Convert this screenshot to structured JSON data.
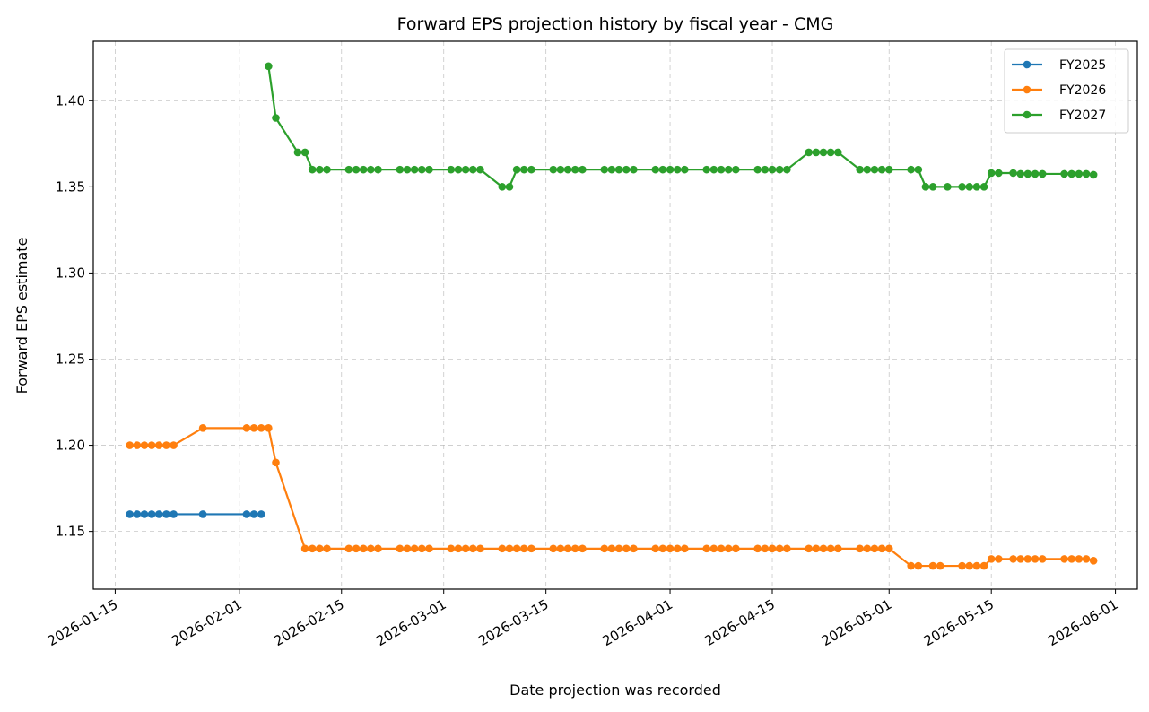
{
  "chart_data": {
    "type": "line",
    "title": "Forward EPS projection history by fiscal year - CMG",
    "xlabel": "Date projection was recorded",
    "ylabel": "Forward EPS estimate",
    "xlim": [
      "2026-01-12",
      "2026-06-04"
    ],
    "ylim": [
      1.1165,
      1.4345
    ],
    "x_ticks": [
      "2026-01-15",
      "2026-02-01",
      "2026-02-15",
      "2026-03-01",
      "2026-03-15",
      "2026-04-01",
      "2026-04-15",
      "2026-05-01",
      "2026-05-15",
      "2026-06-01"
    ],
    "y_ticks": [
      "1.15",
      "1.20",
      "1.25",
      "1.30",
      "1.35",
      "1.40"
    ],
    "grid": true,
    "legend_position": "top-right",
    "colors": {
      "FY2025": "#1f77b4",
      "FY2026": "#ff7f0e",
      "FY2027": "#2ca02c"
    },
    "series": [
      {
        "name": "FY2025",
        "points": [
          [
            "2026-01-17",
            1.16
          ],
          [
            "2026-01-18",
            1.16
          ],
          [
            "2026-01-19",
            1.16
          ],
          [
            "2026-01-20",
            1.16
          ],
          [
            "2026-01-21",
            1.16
          ],
          [
            "2026-01-22",
            1.16
          ],
          [
            "2026-01-23",
            1.16
          ],
          [
            "2026-01-27",
            1.16
          ],
          [
            "2026-02-02",
            1.16
          ],
          [
            "2026-02-03",
            1.16
          ],
          [
            "2026-02-04",
            1.16
          ]
        ]
      },
      {
        "name": "FY2026",
        "points": [
          [
            "2026-01-17",
            1.2
          ],
          [
            "2026-01-18",
            1.2
          ],
          [
            "2026-01-19",
            1.2
          ],
          [
            "2026-01-20",
            1.2
          ],
          [
            "2026-01-21",
            1.2
          ],
          [
            "2026-01-22",
            1.2
          ],
          [
            "2026-01-23",
            1.2
          ],
          [
            "2026-01-27",
            1.21
          ],
          [
            "2026-02-02",
            1.21
          ],
          [
            "2026-02-03",
            1.21
          ],
          [
            "2026-02-04",
            1.21
          ],
          [
            "2026-02-05",
            1.21
          ],
          [
            "2026-02-06",
            1.19
          ],
          [
            "2026-02-10",
            1.14
          ],
          [
            "2026-02-11",
            1.14
          ],
          [
            "2026-02-12",
            1.14
          ],
          [
            "2026-02-13",
            1.14
          ],
          [
            "2026-02-16",
            1.14
          ],
          [
            "2026-02-17",
            1.14
          ],
          [
            "2026-02-18",
            1.14
          ],
          [
            "2026-02-19",
            1.14
          ],
          [
            "2026-02-20",
            1.14
          ],
          [
            "2026-02-23",
            1.14
          ],
          [
            "2026-02-24",
            1.14
          ],
          [
            "2026-02-25",
            1.14
          ],
          [
            "2026-02-26",
            1.14
          ],
          [
            "2026-02-27",
            1.14
          ],
          [
            "2026-03-02",
            1.14
          ],
          [
            "2026-03-03",
            1.14
          ],
          [
            "2026-03-04",
            1.14
          ],
          [
            "2026-03-05",
            1.14
          ],
          [
            "2026-03-06",
            1.14
          ],
          [
            "2026-03-09",
            1.14
          ],
          [
            "2026-03-10",
            1.14
          ],
          [
            "2026-03-11",
            1.14
          ],
          [
            "2026-03-12",
            1.14
          ],
          [
            "2026-03-13",
            1.14
          ],
          [
            "2026-03-16",
            1.14
          ],
          [
            "2026-03-17",
            1.14
          ],
          [
            "2026-03-18",
            1.14
          ],
          [
            "2026-03-19",
            1.14
          ],
          [
            "2026-03-20",
            1.14
          ],
          [
            "2026-03-23",
            1.14
          ],
          [
            "2026-03-24",
            1.14
          ],
          [
            "2026-03-25",
            1.14
          ],
          [
            "2026-03-26",
            1.14
          ],
          [
            "2026-03-27",
            1.14
          ],
          [
            "2026-03-30",
            1.14
          ],
          [
            "2026-03-31",
            1.14
          ],
          [
            "2026-04-01",
            1.14
          ],
          [
            "2026-04-02",
            1.14
          ],
          [
            "2026-04-03",
            1.14
          ],
          [
            "2026-04-06",
            1.14
          ],
          [
            "2026-04-07",
            1.14
          ],
          [
            "2026-04-08",
            1.14
          ],
          [
            "2026-04-09",
            1.14
          ],
          [
            "2026-04-10",
            1.14
          ],
          [
            "2026-04-13",
            1.14
          ],
          [
            "2026-04-14",
            1.14
          ],
          [
            "2026-04-15",
            1.14
          ],
          [
            "2026-04-16",
            1.14
          ],
          [
            "2026-04-17",
            1.14
          ],
          [
            "2026-04-20",
            1.14
          ],
          [
            "2026-04-21",
            1.14
          ],
          [
            "2026-04-22",
            1.14
          ],
          [
            "2026-04-23",
            1.14
          ],
          [
            "2026-04-24",
            1.14
          ],
          [
            "2026-04-27",
            1.14
          ],
          [
            "2026-04-28",
            1.14
          ],
          [
            "2026-04-29",
            1.14
          ],
          [
            "2026-04-30",
            1.14
          ],
          [
            "2026-05-01",
            1.14
          ],
          [
            "2026-05-04",
            1.13
          ],
          [
            "2026-05-05",
            1.13
          ],
          [
            "2026-05-07",
            1.13
          ],
          [
            "2026-05-08",
            1.13
          ],
          [
            "2026-05-11",
            1.13
          ],
          [
            "2026-05-12",
            1.13
          ],
          [
            "2026-05-13",
            1.13
          ],
          [
            "2026-05-14",
            1.13
          ],
          [
            "2026-05-15",
            1.134
          ],
          [
            "2026-05-16",
            1.134
          ],
          [
            "2026-05-18",
            1.134
          ],
          [
            "2026-05-19",
            1.134
          ],
          [
            "2026-05-20",
            1.134
          ],
          [
            "2026-05-21",
            1.134
          ],
          [
            "2026-05-22",
            1.134
          ],
          [
            "2026-05-25",
            1.134
          ],
          [
            "2026-05-26",
            1.134
          ],
          [
            "2026-05-27",
            1.134
          ],
          [
            "2026-05-28",
            1.134
          ],
          [
            "2026-05-29",
            1.133
          ]
        ]
      },
      {
        "name": "FY2027",
        "points": [
          [
            "2026-02-05",
            1.42
          ],
          [
            "2026-02-06",
            1.39
          ],
          [
            "2026-02-09",
            1.37
          ],
          [
            "2026-02-10",
            1.37
          ],
          [
            "2026-02-11",
            1.36
          ],
          [
            "2026-02-12",
            1.36
          ],
          [
            "2026-02-13",
            1.36
          ],
          [
            "2026-02-16",
            1.36
          ],
          [
            "2026-02-17",
            1.36
          ],
          [
            "2026-02-18",
            1.36
          ],
          [
            "2026-02-19",
            1.36
          ],
          [
            "2026-02-20",
            1.36
          ],
          [
            "2026-02-23",
            1.36
          ],
          [
            "2026-02-24",
            1.36
          ],
          [
            "2026-02-25",
            1.36
          ],
          [
            "2026-02-26",
            1.36
          ],
          [
            "2026-02-27",
            1.36
          ],
          [
            "2026-03-02",
            1.36
          ],
          [
            "2026-03-03",
            1.36
          ],
          [
            "2026-03-04",
            1.36
          ],
          [
            "2026-03-05",
            1.36
          ],
          [
            "2026-03-06",
            1.36
          ],
          [
            "2026-03-09",
            1.35
          ],
          [
            "2026-03-10",
            1.35
          ],
          [
            "2026-03-11",
            1.36
          ],
          [
            "2026-03-12",
            1.36
          ],
          [
            "2026-03-13",
            1.36
          ],
          [
            "2026-03-16",
            1.36
          ],
          [
            "2026-03-17",
            1.36
          ],
          [
            "2026-03-18",
            1.36
          ],
          [
            "2026-03-19",
            1.36
          ],
          [
            "2026-03-20",
            1.36
          ],
          [
            "2026-03-23",
            1.36
          ],
          [
            "2026-03-24",
            1.36
          ],
          [
            "2026-03-25",
            1.36
          ],
          [
            "2026-03-26",
            1.36
          ],
          [
            "2026-03-27",
            1.36
          ],
          [
            "2026-03-30",
            1.36
          ],
          [
            "2026-03-31",
            1.36
          ],
          [
            "2026-04-01",
            1.36
          ],
          [
            "2026-04-02",
            1.36
          ],
          [
            "2026-04-03",
            1.36
          ],
          [
            "2026-04-06",
            1.36
          ],
          [
            "2026-04-07",
            1.36
          ],
          [
            "2026-04-08",
            1.36
          ],
          [
            "2026-04-09",
            1.36
          ],
          [
            "2026-04-10",
            1.36
          ],
          [
            "2026-04-13",
            1.36
          ],
          [
            "2026-04-14",
            1.36
          ],
          [
            "2026-04-15",
            1.36
          ],
          [
            "2026-04-16",
            1.36
          ],
          [
            "2026-04-17",
            1.36
          ],
          [
            "2026-04-20",
            1.37
          ],
          [
            "2026-04-21",
            1.37
          ],
          [
            "2026-04-22",
            1.37
          ],
          [
            "2026-04-23",
            1.37
          ],
          [
            "2026-04-24",
            1.37
          ],
          [
            "2026-04-27",
            1.36
          ],
          [
            "2026-04-28",
            1.36
          ],
          [
            "2026-04-29",
            1.36
          ],
          [
            "2026-04-30",
            1.36
          ],
          [
            "2026-05-01",
            1.36
          ],
          [
            "2026-05-04",
            1.36
          ],
          [
            "2026-05-05",
            1.36
          ],
          [
            "2026-05-06",
            1.35
          ],
          [
            "2026-05-07",
            1.35
          ],
          [
            "2026-05-09",
            1.35
          ],
          [
            "2026-05-11",
            1.35
          ],
          [
            "2026-05-12",
            1.35
          ],
          [
            "2026-05-13",
            1.35
          ],
          [
            "2026-05-14",
            1.35
          ],
          [
            "2026-05-15",
            1.358
          ],
          [
            "2026-05-16",
            1.358
          ],
          [
            "2026-05-18",
            1.358
          ],
          [
            "2026-05-19",
            1.3575
          ],
          [
            "2026-05-20",
            1.3575
          ],
          [
            "2026-05-21",
            1.3575
          ],
          [
            "2026-05-22",
            1.3575
          ],
          [
            "2026-05-25",
            1.3575
          ],
          [
            "2026-05-26",
            1.3575
          ],
          [
            "2026-05-27",
            1.3575
          ],
          [
            "2026-05-28",
            1.3575
          ],
          [
            "2026-05-29",
            1.357
          ]
        ]
      }
    ]
  }
}
